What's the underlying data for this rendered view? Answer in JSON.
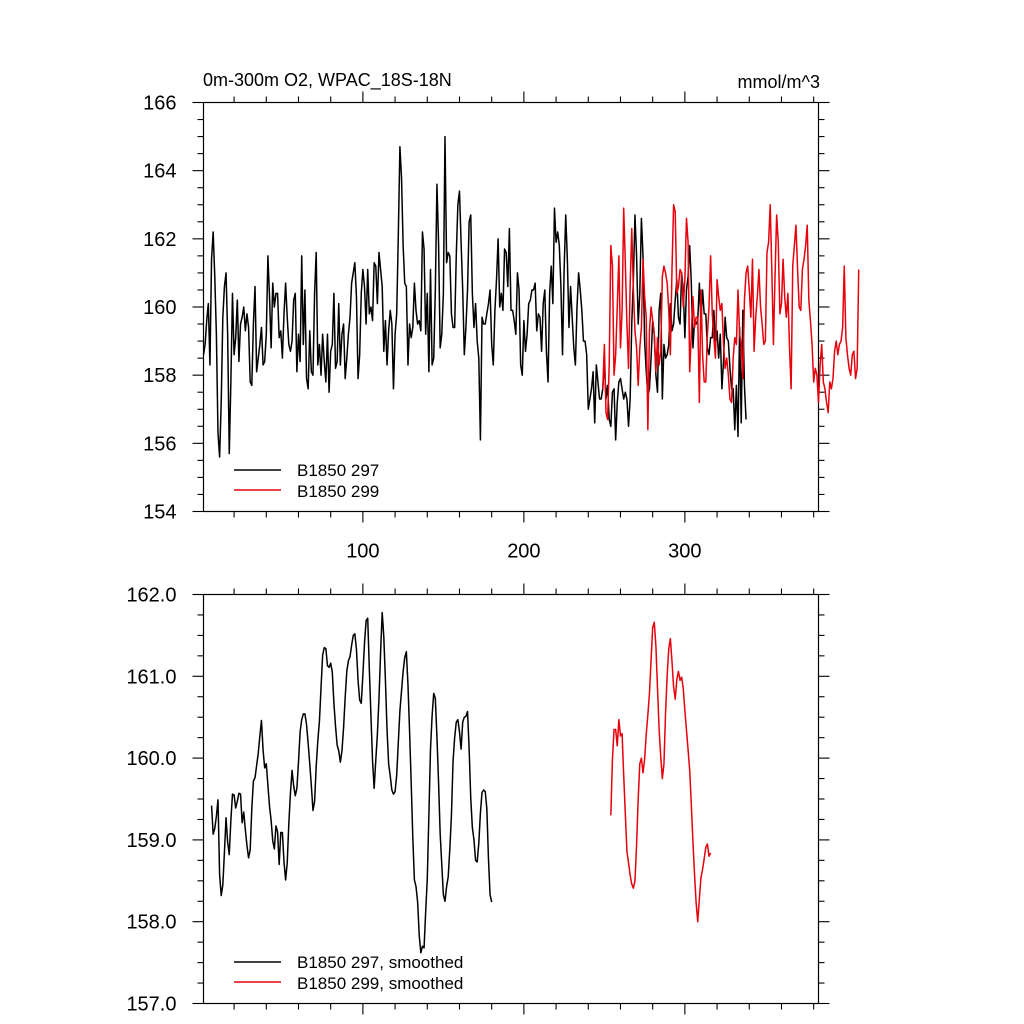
{
  "chart_data": [
    {
      "type": "line",
      "title": "0m-300m O2, WPAC_18S-18N",
      "units": "mmol/m^3",
      "xlabel": "",
      "ylabel": "",
      "xlim": [
        1,
        383
      ],
      "ylim": [
        154,
        166
      ],
      "yticks": [
        "166",
        "164",
        "162",
        "160",
        "158",
        "156",
        "154"
      ],
      "ytick_values": [
        166,
        164,
        162,
        160,
        158,
        156,
        154
      ],
      "xticks": [
        "100",
        "200",
        "300"
      ],
      "xtick_values": [
        100,
        200,
        300
      ],
      "legend_position": "bottom-left",
      "series": [
        {
          "name": "B1850 297",
          "color": "#000000",
          "x_start": 1,
          "values": [
            158.6,
            158.9,
            159.6,
            160.1,
            158.3,
            161.4,
            162.2,
            160.9,
            159.2,
            156.3,
            155.6,
            157.2,
            159.7,
            160.6,
            161.0,
            159.2,
            155.7,
            157.8,
            160.4,
            158.6,
            159.1,
            160.2,
            158.4,
            159.5,
            159.7,
            160.0,
            159.3,
            159.8,
            159.4,
            157.8,
            157.7,
            159.5,
            160.6,
            158.1,
            158.5,
            158.9,
            159.4,
            158.3,
            158.4,
            159.2,
            161.5,
            160.3,
            158.8,
            160.7,
            160.0,
            160.4,
            160.4,
            159.1,
            159.3,
            158.5,
            159.8,
            160.7,
            159.7,
            158.9,
            158.7,
            159.0,
            160.2,
            160.4,
            158.1,
            159.2,
            158.4,
            161.5,
            158.9,
            160.5,
            157.9,
            157.6,
            159.3,
            158.1,
            158.0,
            160.4,
            161.6,
            158.3,
            158.9,
            158.0,
            159.2,
            158.4,
            157.8,
            159.2,
            157.5,
            158.7,
            158.9,
            160.4,
            158.2,
            158.4,
            160.1,
            158.3,
            159.2,
            159.5,
            157.9,
            158.5,
            159.2,
            159.7,
            160.7,
            161.0,
            161.3,
            160.3,
            157.9,
            158.6,
            160.4,
            161.1,
            160.6,
            159.5,
            161.1,
            159.8,
            160.0,
            159.6,
            161.3,
            161.2,
            160.1,
            161.6,
            161.1,
            160.6,
            158.7,
            159.6,
            158.3,
            159.3,
            159.9,
            159.5,
            157.6,
            159.2,
            159.8,
            162.1,
            164.7,
            163.8,
            161.8,
            160.7,
            160.6,
            158.3,
            159.5,
            159.1,
            159.4,
            160.7,
            159.9,
            159.5,
            159.6,
            159.3,
            162.2,
            161.7,
            159.2,
            160.4,
            158.1,
            161.1,
            158.3,
            158.5,
            160.5,
            163.6,
            161.9,
            158.8,
            159.2,
            160.4,
            165.0,
            161.3,
            161.6,
            161.5,
            159.8,
            159.4,
            159.4,
            161.5,
            163.0,
            163.4,
            161.9,
            160.5,
            158.6,
            159.4,
            160.5,
            162.5,
            162.7,
            160.4,
            159.4,
            160.1,
            159.0,
            158.5,
            156.1,
            159.7,
            159.5,
            159.5,
            159.8,
            160.1,
            160.5,
            158.9,
            158.3,
            159.9,
            160.8,
            162.0,
            160.0,
            160.4,
            159.9,
            161.7,
            161.6,
            160.6,
            162.3,
            159.9,
            159.9,
            159.6,
            159.2,
            161.0,
            160.5,
            158.3,
            158.0,
            159.6,
            158.7,
            159.2,
            160.1,
            160.2,
            160.5,
            160.5,
            160.7,
            159.3,
            159.8,
            159.7,
            158.7,
            160.1,
            160.5,
            158.7,
            157.8,
            160.4,
            161.2,
            160.1,
            162.9,
            161.9,
            162.2,
            161.8,
            160.6,
            158.6,
            161.1,
            162.7,
            161.4,
            159.4,
            160.6,
            159.7,
            158.8,
            158.3,
            160.0,
            161.0,
            160.5,
            159.9,
            159.0,
            159.0,
            158.6,
            157.0,
            157.3,
            157.6,
            158.1,
            156.6,
            158.3,
            157.8,
            157.3,
            157.3,
            157.6,
            158.4,
            157.3,
            157.7,
            156.7,
            156.5,
            157.5,
            157.6,
            156.1,
            157.2,
            157.8,
            157.9,
            157.6,
            157.3,
            157.5,
            157.3,
            156.5,
            157.3,
            159.5,
            160.8,
            162.7,
            161.5,
            159.5,
            160.4,
            162.6,
            161.5,
            159.0,
            158.1,
            157.4,
            157.6,
            158.5,
            159.6,
            159.2,
            158.0,
            157.5,
            159.9,
            160.4,
            157.3,
            158.9,
            158.5,
            158.6,
            158.9,
            160.1,
            159.3,
            159.5,
            160.2,
            160.8,
            159.7,
            159.5,
            161.0,
            160.5,
            159.1,
            160.5,
            160.9,
            161.8,
            160.7,
            158.8,
            159.6,
            159.5,
            159.6,
            160.7,
            159.6,
            160.5,
            159.8,
            159.8,
            158.8,
            158.6,
            159.1,
            159.1,
            159.9,
            158.9,
            159.3,
            158.5,
            159.2,
            157.6,
            158.4,
            159.7,
            159.1,
            159.0,
            158.2,
            157.6,
            157.6,
            156.4,
            157.7,
            156.2,
            159.4,
            156.6,
            159.9,
            157.7,
            156.7
          ]
        },
        {
          "name": "B1850 299",
          "color": "#e8000b",
          "x_start": 249,
          "values": [
            157.6,
            158.9,
            156.9,
            156.7,
            158.3,
            161.8,
            161.2,
            158.0,
            158.6,
            160.0,
            161.5,
            158.8,
            159.9,
            162.9,
            161.3,
            159.5,
            158.2,
            160.6,
            162.3,
            160.5,
            159.3,
            158.8,
            157.7,
            158.8,
            159.4,
            161.4,
            160.3,
            159.7,
            156.4,
            159.3,
            160.0,
            159.6,
            159.2,
            158.1,
            159.1,
            158.3,
            158.7,
            160.9,
            161.2,
            161.0,
            160.7,
            159.9,
            158.6,
            161.1,
            163.0,
            162.8,
            160.4,
            160.6,
            161.1,
            161.0,
            160.0,
            160.8,
            162.6,
            161.9,
            158.1,
            159.2,
            160.3,
            159.4,
            159.7,
            159.7,
            157.2,
            160.5,
            158.6,
            157.8,
            157.8,
            159.2,
            160.0,
            161.5,
            159.8,
            159.1,
            158.5,
            160.8,
            160.3,
            159.9,
            160.1,
            158.9,
            158.2,
            158.5,
            158.0,
            157.3,
            157.2,
            158.5,
            159.1,
            158.9,
            160.5,
            159.2,
            158.9,
            157.9,
            160.2,
            161.0,
            161.2,
            160.5,
            159.7,
            161.4,
            158.7,
            159.7,
            160.3,
            161.1,
            160.0,
            159.5,
            158.9,
            159.0,
            161.6,
            161.9,
            163.0,
            161.1,
            158.9,
            160.9,
            162.7,
            161.9,
            159.8,
            160.1,
            161.4,
            160.3,
            159.7,
            160.4,
            158.8,
            157.6,
            161.2,
            161.8,
            162.4,
            161.1,
            160.0,
            159.9,
            161.1,
            161.4,
            161.8,
            162.4,
            160.2,
            159.6,
            158.9,
            157.8,
            158.2,
            158.0,
            157.2,
            158.3,
            158.9,
            157.8,
            157.6,
            157.2,
            156.9,
            157.8,
            157.6,
            157.9,
            158.7,
            159.0,
            158.6,
            158.9,
            159.0,
            159.4,
            161.2,
            159.1,
            158.6,
            158.2,
            158.0,
            158.6,
            158.7,
            157.9,
            158.2,
            161.1
          ]
        }
      ]
    },
    {
      "type": "line",
      "title": "",
      "xlabel": "",
      "ylabel": "",
      "xlim": [
        1,
        383
      ],
      "ylim": [
        157.0,
        162.0
      ],
      "yticks": [
        "162.0",
        "161.0",
        "160.0",
        "159.0",
        "158.0",
        "157.0"
      ],
      "ytick_values": [
        162.0,
        161.0,
        160.0,
        159.0,
        158.0,
        157.0
      ],
      "xtick_values": [
        100,
        200,
        300
      ],
      "legend_position": "bottom-left",
      "series": [
        {
          "name": "B1850 297, smoothed",
          "color": "#000000",
          "x_start": 6,
          "values": [
            159.42,
            159.07,
            159.14,
            159.29,
            159.49,
            158.58,
            158.32,
            158.45,
            158.85,
            159.27,
            158.97,
            158.82,
            159.24,
            159.56,
            159.55,
            159.39,
            159.47,
            159.57,
            159.56,
            159.21,
            159.34,
            159.12,
            158.93,
            158.78,
            158.88,
            159.38,
            159.72,
            159.76,
            159.91,
            160.06,
            160.27,
            160.46,
            160.1,
            159.88,
            159.93,
            159.67,
            159.41,
            159.24,
            158.99,
            158.89,
            159.17,
            159.1,
            158.7,
            159.09,
            159.09,
            158.73,
            158.51,
            158.72,
            159.2,
            159.57,
            159.85,
            159.66,
            159.54,
            159.63,
            159.95,
            160.32,
            160.47,
            160.54,
            160.54,
            160.41,
            160.18,
            159.93,
            159.66,
            159.36,
            159.47,
            159.9,
            160.21,
            160.45,
            160.86,
            161.26,
            161.35,
            161.34,
            161.13,
            161.11,
            161.16,
            161.05,
            160.67,
            160.39,
            160.16,
            160.09,
            159.95,
            160.09,
            160.37,
            160.74,
            161.06,
            161.19,
            161.24,
            161.38,
            161.5,
            161.52,
            161.33,
            160.95,
            160.71,
            160.67,
            161.02,
            161.4,
            161.68,
            161.71,
            161.09,
            160.52,
            159.97,
            159.63,
            159.97,
            160.29,
            160.73,
            161.29,
            161.78,
            161.48,
            160.95,
            160.35,
            159.93,
            159.78,
            159.61,
            159.56,
            159.59,
            159.79,
            160.19,
            160.58,
            160.82,
            161.06,
            161.23,
            161.3,
            160.9,
            160.33,
            159.7,
            159.03,
            158.51,
            158.43,
            158.24,
            157.83,
            157.62,
            157.7,
            157.68,
            158.12,
            158.52,
            159.31,
            160.11,
            160.52,
            160.79,
            160.73,
            160.26,
            159.71,
            159.08,
            158.7,
            158.33,
            158.25,
            158.43,
            158.55,
            158.89,
            159.3,
            159.96,
            160.25,
            160.44,
            160.47,
            160.32,
            160.11,
            160.44,
            160.5,
            160.51,
            160.57,
            160.11,
            159.51,
            159.15,
            159.0,
            158.75,
            158.73,
            158.96,
            159.33,
            159.58,
            159.61,
            159.59,
            159.38,
            158.77,
            158.33,
            158.24
          ]
        },
        {
          "name": "B1850 299, smoothed",
          "color": "#e8000b",
          "x_start": 254,
          "values": [
            159.3,
            159.98,
            160.35,
            160.35,
            160.15,
            160.47,
            160.27,
            160.3,
            159.79,
            159.32,
            158.86,
            158.72,
            158.57,
            158.46,
            158.41,
            158.5,
            158.94,
            159.5,
            159.93,
            160.0,
            159.82,
            159.99,
            160.29,
            160.53,
            160.79,
            161.2,
            161.6,
            161.66,
            161.37,
            160.85,
            160.35,
            160.02,
            159.75,
            159.93,
            160.55,
            161.01,
            161.34,
            161.46,
            161.18,
            160.87,
            160.72,
            160.96,
            161.06,
            160.95,
            160.99,
            160.85,
            160.58,
            160.34,
            160.1,
            159.85,
            159.43,
            158.98,
            158.58,
            158.23,
            158.0,
            158.28,
            158.54,
            158.64,
            158.77,
            158.91,
            158.95,
            158.8,
            158.84
          ]
        }
      ]
    }
  ]
}
